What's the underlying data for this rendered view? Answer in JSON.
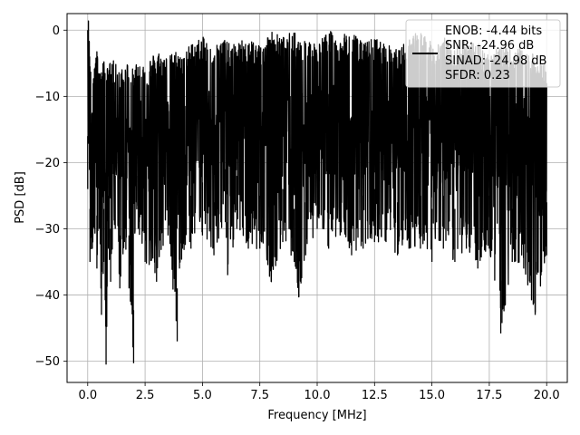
{
  "chart_data": {
    "type": "line",
    "xlabel": "Frequency [MHz]",
    "ylabel": "PSD [dB]",
    "xlim": [
      -0.9,
      20.9
    ],
    "ylim": [
      -53.2,
      2.5
    ],
    "x_ticks": [
      0.0,
      2.5,
      5.0,
      7.5,
      10.0,
      12.5,
      15.0,
      17.5,
      20.0
    ],
    "x_tick_labels": [
      "0.0",
      "2.5",
      "5.0",
      "7.5",
      "10.0",
      "12.5",
      "15.0",
      "17.5",
      "20.0"
    ],
    "y_ticks": [
      0,
      -10,
      -20,
      -30,
      -40,
      -50
    ],
    "y_tick_labels": [
      "0",
      "−10",
      "−20",
      "−30",
      "−40",
      "−50"
    ],
    "grid": true,
    "legend_position": "top-right",
    "legend_lines": [
      "ENOB: -4.44 bits",
      "SNR: -24.96 dB",
      "SINAD: -24.98 dB",
      "SFDR: 0.23"
    ],
    "series": [
      {
        "color": "#000000",
        "x": [
          0.0,
          0.1,
          0.2,
          0.3,
          0.4,
          0.5,
          0.6,
          0.7,
          0.8,
          0.9,
          1.0,
          1.2,
          1.4,
          1.6,
          1.8,
          2.0,
          2.2,
          2.5,
          3.0,
          3.5,
          3.9,
          4.0,
          4.5,
          5.0,
          5.5,
          6.0,
          6.1,
          6.5,
          7.0,
          7.5,
          8.0,
          8.5,
          9.0,
          9.2,
          9.5,
          10.0,
          10.5,
          11.0,
          11.5,
          12.0,
          12.5,
          13.0,
          13.5,
          14.0,
          14.5,
          15.0,
          15.5,
          16.0,
          16.5,
          17.0,
          17.5,
          18.0,
          18.5,
          19.0,
          19.5,
          20.0
        ],
        "top": [
          0,
          -7,
          -9,
          -8,
          -7,
          -9,
          -10,
          -8,
          -9,
          -10,
          -8,
          -9,
          -10,
          -8,
          -9,
          -10,
          -8,
          -9,
          -7,
          -8,
          -7,
          -8,
          -6,
          -5,
          -6,
          -5,
          -6,
          -6,
          -5,
          -6,
          -4,
          -5,
          -4,
          -6,
          -5,
          -6,
          -4,
          -5,
          -4,
          -6,
          -5,
          -6,
          -7,
          -5,
          -4,
          -6,
          -5,
          -6,
          -5,
          -6,
          -7,
          -6,
          -7,
          -6,
          -8,
          -9
        ],
        "bottom": [
          -24,
          -35,
          -33,
          -30,
          -36,
          -30,
          -43,
          -35,
          -50.5,
          -33,
          -38,
          -30,
          -39,
          -32,
          -39,
          -50.3,
          -30,
          -35,
          -38,
          -31,
          -47,
          -36,
          -33,
          -31,
          -34,
          -29,
          -37,
          -30,
          -33,
          -33,
          -38,
          -32,
          -35,
          -40.3,
          -34,
          -30,
          -33,
          -31,
          -34,
          -33,
          -32,
          -32,
          -34,
          -33,
          -33,
          -35,
          -33,
          -35,
          -33,
          -36,
          -33,
          -45.8,
          -35,
          -36,
          -43,
          -34
        ]
      }
    ]
  }
}
